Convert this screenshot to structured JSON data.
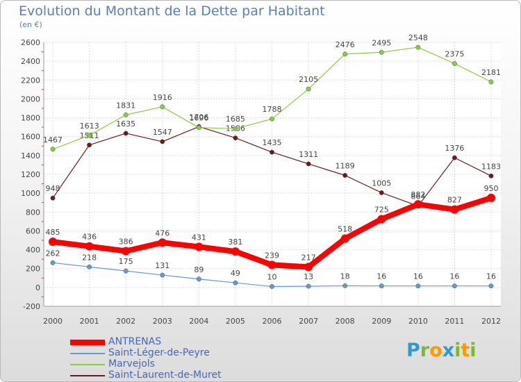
{
  "chart_data": {
    "type": "line",
    "title": "Evolution du Montant de la Dette par Habitant",
    "subtitle": "(en €)",
    "x": [
      "2000",
      "2001",
      "2002",
      "2003",
      "2004",
      "2005",
      "2006",
      "2007",
      "2008",
      "2009",
      "2010",
      "2011",
      "2012"
    ],
    "ylim": [
      -200,
      2600
    ],
    "yticks": [
      -200,
      0,
      200,
      400,
      600,
      800,
      1000,
      1200,
      1400,
      1600,
      1800,
      2000,
      2200,
      2400,
      2600
    ],
    "grid": true,
    "legend_position": "bottom-left",
    "series": [
      {
        "name": "Saint-Laurent-de-Muret",
        "color": "#6b1a1a",
        "values": [
          948,
          1511,
          1635,
          1547,
          1706,
          1586,
          1435,
          1311,
          1189,
          1005,
          864,
          1376,
          1183
        ]
      },
      {
        "name": "Marvejols",
        "color": "#88cc44",
        "values": [
          1467,
          1613,
          1831,
          1916,
          1696,
          1685,
          1788,
          2105,
          2476,
          2495,
          2548,
          2375,
          2181
        ]
      },
      {
        "name": "Saint-Léger-de-Peyre",
        "color": "#6699cc",
        "values": [
          262,
          218,
          175,
          131,
          89,
          49,
          10,
          13,
          18,
          16,
          16,
          16,
          16
        ]
      },
      {
        "name": "ANTRENAS",
        "color": "#ff0000",
        "values": [
          485,
          436,
          386,
          476,
          431,
          381,
          239,
          217,
          518,
          725,
          882,
          827,
          950
        ]
      }
    ]
  },
  "legend": [
    {
      "label": "ANTRENAS",
      "color": "#ff0000"
    },
    {
      "label": "Saint-Léger-de-Peyre",
      "color": "#6699cc"
    },
    {
      "label": "Marvejols",
      "color": "#88cc44"
    },
    {
      "label": "Saint-Laurent-de-Muret",
      "color": "#6b1a1a"
    }
  ],
  "brand": {
    "letters": [
      {
        "char": "P",
        "color": "#3399cc"
      },
      {
        "char": "r",
        "color": "#77bb33"
      },
      {
        "char": "o",
        "color": "#ff9900"
      },
      {
        "char": "x",
        "color": "#3399cc"
      },
      {
        "char": "i",
        "color": "#77bb33"
      },
      {
        "char": "t",
        "color": "#ff9900"
      },
      {
        "char": "i",
        "color": "#77bb33"
      }
    ]
  }
}
